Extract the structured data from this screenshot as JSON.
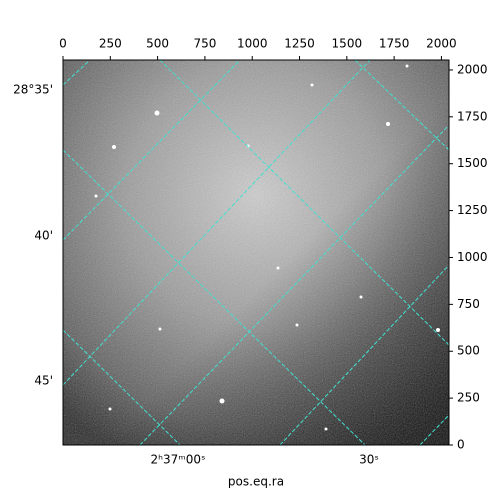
{
  "chart_data": {
    "type": "image",
    "xlabel": "pos.eq.ra",
    "xlim": [
      0,
      2040
    ],
    "xticks": [
      0,
      250,
      500,
      750,
      1000,
      1250,
      1500,
      1750,
      2000
    ],
    "ylim": [
      0,
      2053
    ],
    "yticks": [
      0,
      250,
      500,
      750,
      1000,
      1250,
      1500,
      1750,
      2000
    ],
    "ra_ticks": [
      "2ʰ37ᵐ00ˢ",
      "30ˢ"
    ],
    "dec_ticks": [
      "28°35'",
      "40'",
      "45'"
    ],
    "grid_color": "#40e0d0"
  }
}
